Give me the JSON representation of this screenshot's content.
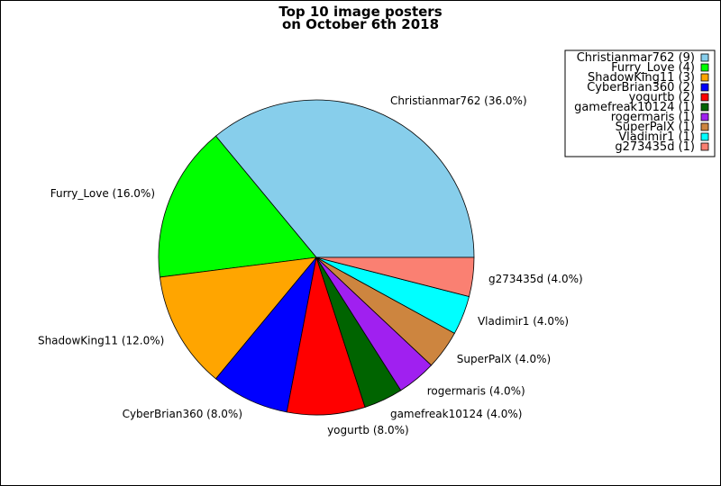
{
  "chart_data": {
    "type": "pie",
    "title": [
      "Top 10 image posters",
      "on October 6th 2018"
    ],
    "start_angle_deg": 0,
    "direction": "counterclockwise",
    "legend_placement": "top-right",
    "slices": [
      {
        "name": "Christianmar762",
        "count": 9,
        "percent": 36.0,
        "color": "#87ceeb",
        "label": "Christianmar762 (36.0%)",
        "legend": "Christianmar762 (9)"
      },
      {
        "name": "Furry_Love",
        "count": 4,
        "percent": 16.0,
        "color": "#00ff00",
        "label": "Furry_Love (16.0%)",
        "legend": "Furry_Love (4)"
      },
      {
        "name": "ShadowKing11",
        "count": 3,
        "percent": 12.0,
        "color": "#ffa500",
        "label": "ShadowKing11 (12.0%)",
        "legend": "ShadowKing11 (3)"
      },
      {
        "name": "CyberBrian360",
        "count": 2,
        "percent": 8.0,
        "color": "#0000ff",
        "label": "CyberBrian360 (8.0%)",
        "legend": "CyberBrian360 (2)"
      },
      {
        "name": "yogurtb",
        "count": 2,
        "percent": 8.0,
        "color": "#ff0000",
        "label": "yogurtb (8.0%)",
        "legend": "yogurtb (2)"
      },
      {
        "name": "gamefreak10124",
        "count": 1,
        "percent": 4.0,
        "color": "#006400",
        "label": "gamefreak10124 (4.0%)",
        "legend": "gamefreak10124 (1)"
      },
      {
        "name": "rogermaris",
        "count": 1,
        "percent": 4.0,
        "color": "#a020f0",
        "label": "rogermaris (4.0%)",
        "legend": "rogermaris (1)"
      },
      {
        "name": "SuperPalX",
        "count": 1,
        "percent": 4.0,
        "color": "#cd853f",
        "label": "SuperPalX (4.0%)",
        "legend": "SuperPalX (1)"
      },
      {
        "name": "Vladimir1",
        "count": 1,
        "percent": 4.0,
        "color": "#00ffff",
        "label": "Vladimir1 (4.0%)",
        "legend": "Vladimir1 (1)"
      },
      {
        "name": "g273435d",
        "count": 1,
        "percent": 4.0,
        "color": "#fa8072",
        "label": "g273435d (4.0%)",
        "legend": "g273435d (1)"
      }
    ]
  }
}
